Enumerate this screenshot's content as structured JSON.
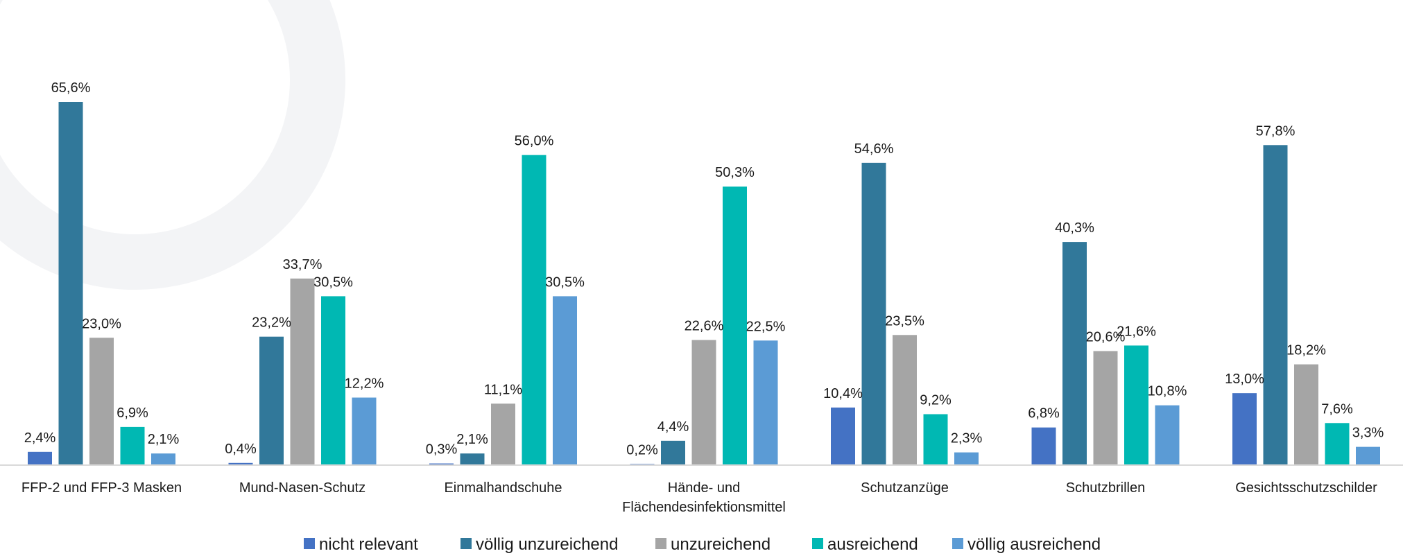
{
  "chart_data": {
    "type": "bar",
    "title": "",
    "xlabel": "",
    "ylabel": "",
    "ylim": [
      0,
      70
    ],
    "grid": false,
    "legend_position": "bottom",
    "categories": [
      [
        "FFP-2 und FFP-3 Masken"
      ],
      [
        "Mund-Nasen-Schutz"
      ],
      [
        "Einmalhandschuhe"
      ],
      [
        "Hände- und",
        "Flächendesinfektionsmittel"
      ],
      [
        "Schutzanzüge"
      ],
      [
        "Schutzbrillen"
      ],
      [
        "Gesichtsschutzschilder"
      ]
    ],
    "series": [
      {
        "name": "nicht relevant",
        "color": "#4472C4",
        "values": [
          2.4,
          0.4,
          0.3,
          0.2,
          10.4,
          6.8,
          13.0
        ],
        "labels": [
          "2,4%",
          "0,4%",
          "0,3%",
          "0,2%",
          "10,4%",
          "6,8%",
          "13,0%"
        ]
      },
      {
        "name": "völlig unzureichend",
        "color": "#31789A",
        "values": [
          65.6,
          23.2,
          2.1,
          4.4,
          54.6,
          40.3,
          57.8
        ],
        "labels": [
          "65,6%",
          "23,2%",
          "2,1%",
          "4,4%",
          "54,6%",
          "40,3%",
          "57,8%"
        ]
      },
      {
        "name": "unzureichend",
        "color": "#A5A5A5",
        "values": [
          23.0,
          33.7,
          11.1,
          22.6,
          23.5,
          20.6,
          18.2
        ],
        "labels": [
          "23,0%",
          "33,7%",
          "11,1%",
          "22,6%",
          "23,5%",
          "20,6%",
          "18,2%"
        ]
      },
      {
        "name": "ausreichend",
        "color": "#00B8B3",
        "values": [
          6.9,
          30.5,
          56.0,
          50.3,
          9.2,
          21.6,
          7.6
        ],
        "labels": [
          "6,9%",
          "30,5%",
          "56,0%",
          "50,3%",
          "9,2%",
          "21,6%",
          "7,6%"
        ]
      },
      {
        "name": "völlig ausreichend",
        "color": "#5B9BD5",
        "values": [
          2.1,
          12.2,
          30.5,
          22.5,
          2.3,
          10.8,
          3.3
        ],
        "labels": [
          "2,1%",
          "12,2%",
          "30,5%",
          "22,5%",
          "2,3%",
          "10,8%",
          "3,3%"
        ]
      }
    ]
  }
}
